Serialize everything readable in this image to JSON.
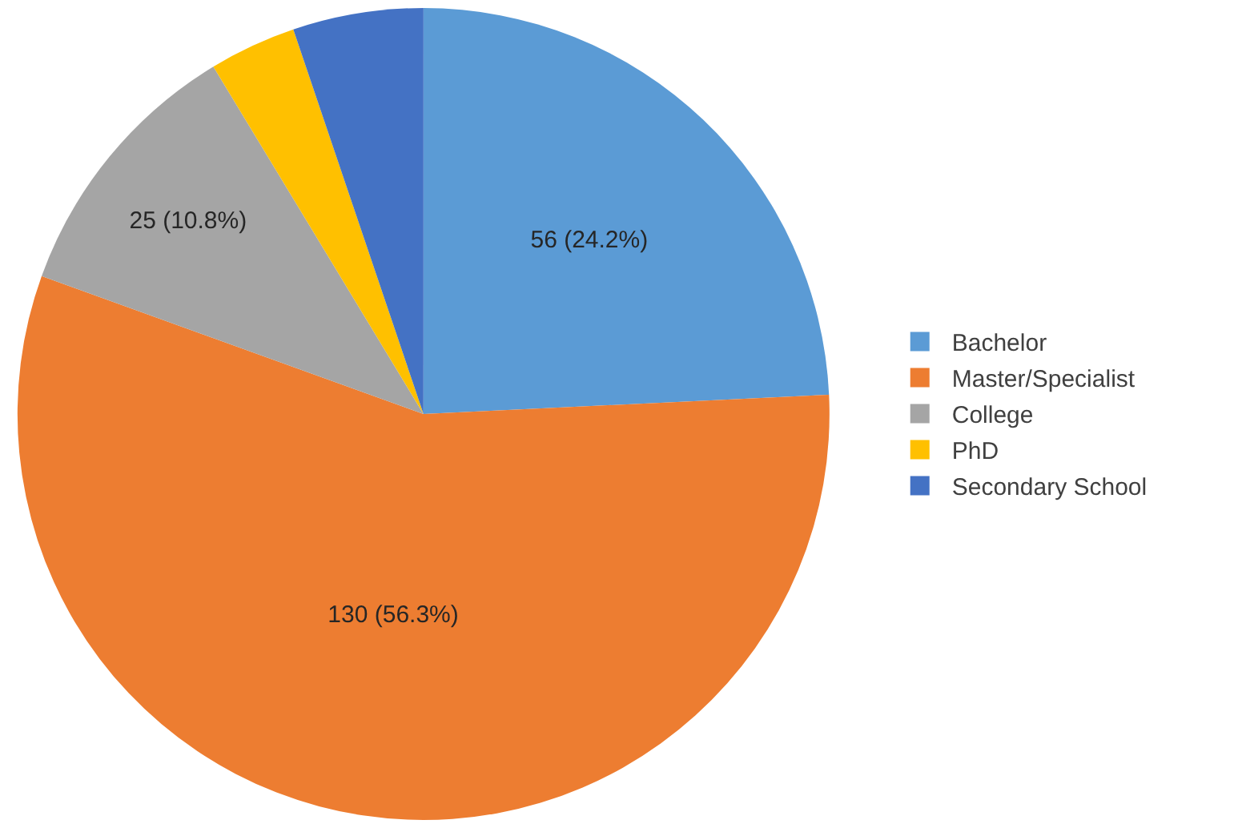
{
  "chart_data": {
    "type": "pie",
    "categories": [
      "Bachelor",
      "Master/Specialist",
      "College",
      "PhD",
      "Secondary School"
    ],
    "values": [
      56,
      130,
      25,
      8,
      12
    ],
    "value_labels": [
      "56 (24.2%)",
      "130 (56.3%)",
      "25 (10.8%)",
      null,
      null
    ],
    "colors": [
      "#5b9bd5",
      "#ed7d31",
      "#a5a5a5",
      "#ffc000",
      "#4472c4"
    ],
    "legend": "right"
  }
}
